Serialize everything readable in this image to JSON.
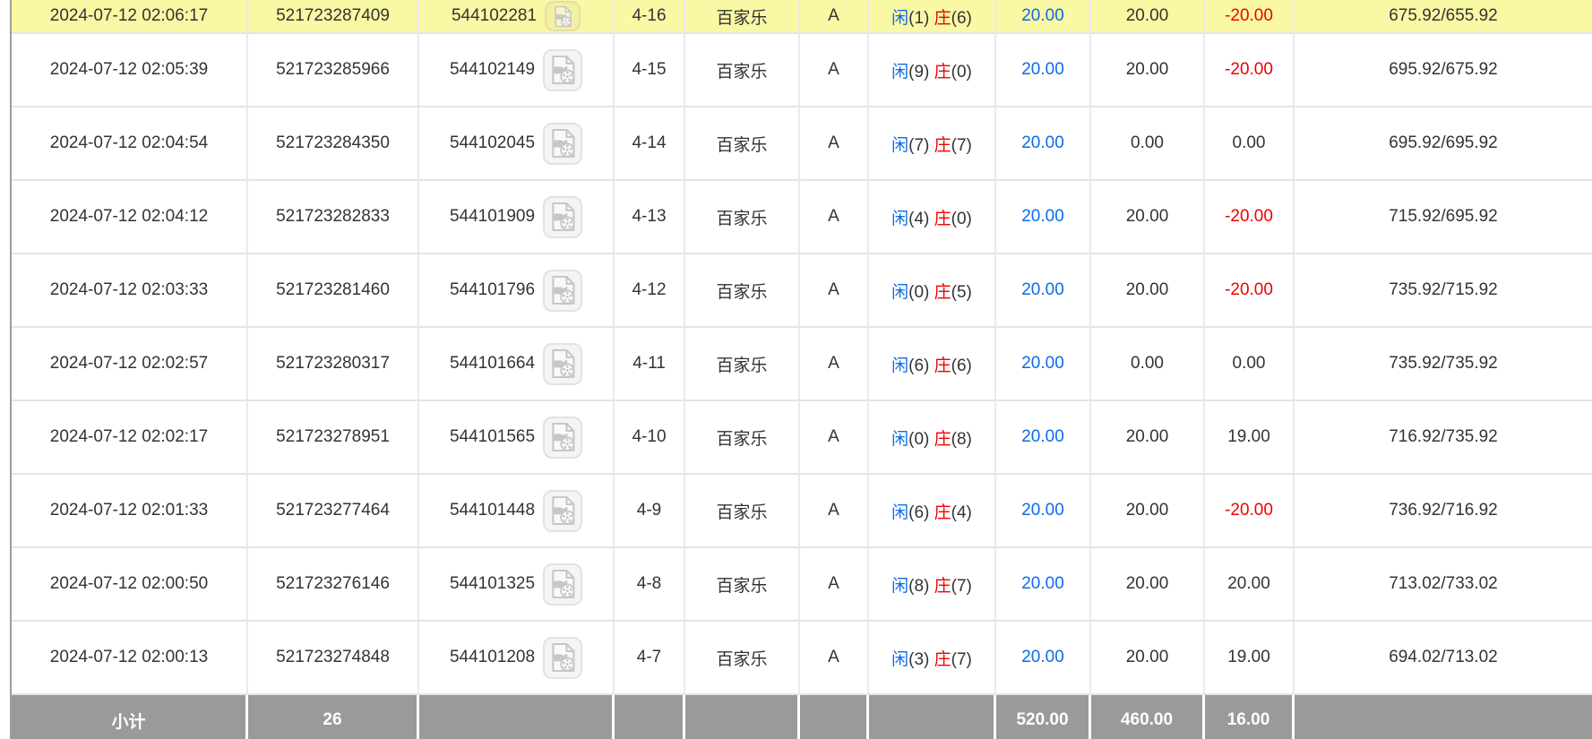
{
  "colors": {
    "blue": "#0b6ce8",
    "red": "#f00000",
    "highlight_yellow": "#f9f8a5",
    "footer_gray": "#9a9a9a"
  },
  "icons": {
    "video_icon": "video-replay-icon"
  },
  "rows": [
    {
      "highlight": true,
      "time": "2024-07-12 02:06:17",
      "bet_id": "521723287409",
      "round_id": "544102281",
      "table_round": "4-16",
      "game": "百家乐",
      "section": "A",
      "player_label": "闲",
      "player_score": "(1)",
      "banker_label": "庄",
      "banker_score": "(6)",
      "bet": "20.00",
      "valid": "20.00",
      "win_loss": "-20.00",
      "balance": "675.92/655.92"
    },
    {
      "highlight": false,
      "time": "2024-07-12 02:05:39",
      "bet_id": "521723285966",
      "round_id": "544102149",
      "table_round": "4-15",
      "game": "百家乐",
      "section": "A",
      "player_label": "闲",
      "player_score": "(9)",
      "banker_label": "庄",
      "banker_score": "(0)",
      "bet": "20.00",
      "valid": "20.00",
      "win_loss": "-20.00",
      "balance": "695.92/675.92"
    },
    {
      "highlight": false,
      "time": "2024-07-12 02:04:54",
      "bet_id": "521723284350",
      "round_id": "544102045",
      "table_round": "4-14",
      "game": "百家乐",
      "section": "A",
      "player_label": "闲",
      "player_score": "(7)",
      "banker_label": "庄",
      "banker_score": "(7)",
      "bet": "20.00",
      "valid": "0.00",
      "win_loss": "0.00",
      "balance": "695.92/695.92"
    },
    {
      "highlight": false,
      "time": "2024-07-12 02:04:12",
      "bet_id": "521723282833",
      "round_id": "544101909",
      "table_round": "4-13",
      "game": "百家乐",
      "section": "A",
      "player_label": "闲",
      "player_score": "(4)",
      "banker_label": "庄",
      "banker_score": "(0)",
      "bet": "20.00",
      "valid": "20.00",
      "win_loss": "-20.00",
      "balance": "715.92/695.92"
    },
    {
      "highlight": false,
      "time": "2024-07-12 02:03:33",
      "bet_id": "521723281460",
      "round_id": "544101796",
      "table_round": "4-12",
      "game": "百家乐",
      "section": "A",
      "player_label": "闲",
      "player_score": "(0)",
      "banker_label": "庄",
      "banker_score": "(5)",
      "bet": "20.00",
      "valid": "20.00",
      "win_loss": "-20.00",
      "balance": "735.92/715.92"
    },
    {
      "highlight": false,
      "time": "2024-07-12 02:02:57",
      "bet_id": "521723280317",
      "round_id": "544101664",
      "table_round": "4-11",
      "game": "百家乐",
      "section": "A",
      "player_label": "闲",
      "player_score": "(6)",
      "banker_label": "庄",
      "banker_score": "(6)",
      "bet": "20.00",
      "valid": "0.00",
      "win_loss": "0.00",
      "balance": "735.92/735.92"
    },
    {
      "highlight": false,
      "time": "2024-07-12 02:02:17",
      "bet_id": "521723278951",
      "round_id": "544101565",
      "table_round": "4-10",
      "game": "百家乐",
      "section": "A",
      "player_label": "闲",
      "player_score": "(0)",
      "banker_label": "庄",
      "banker_score": "(8)",
      "bet": "20.00",
      "valid": "20.00",
      "win_loss": "19.00",
      "balance": "716.92/735.92"
    },
    {
      "highlight": false,
      "time": "2024-07-12 02:01:33",
      "bet_id": "521723277464",
      "round_id": "544101448",
      "table_round": "4-9",
      "game": "百家乐",
      "section": "A",
      "player_label": "闲",
      "player_score": "(6)",
      "banker_label": "庄",
      "banker_score": "(4)",
      "bet": "20.00",
      "valid": "20.00",
      "win_loss": "-20.00",
      "balance": "736.92/716.92"
    },
    {
      "highlight": false,
      "time": "2024-07-12 02:00:50",
      "bet_id": "521723276146",
      "round_id": "544101325",
      "table_round": "4-8",
      "game": "百家乐",
      "section": "A",
      "player_label": "闲",
      "player_score": "(8)",
      "banker_label": "庄",
      "banker_score": "(7)",
      "bet": "20.00",
      "valid": "20.00",
      "win_loss": "20.00",
      "balance": "713.02/733.02"
    },
    {
      "highlight": false,
      "time": "2024-07-12 02:00:13",
      "bet_id": "521723274848",
      "round_id": "544101208",
      "table_round": "4-7",
      "game": "百家乐",
      "section": "A",
      "player_label": "闲",
      "player_score": "(3)",
      "banker_label": "庄",
      "banker_score": "(7)",
      "bet": "20.00",
      "valid": "20.00",
      "win_loss": "19.00",
      "balance": "694.02/713.02"
    }
  ],
  "footer": {
    "subtotal_label": "小计",
    "count": "26",
    "bet_total": "520.00",
    "valid_total": "460.00",
    "winloss_total": "16.00"
  }
}
